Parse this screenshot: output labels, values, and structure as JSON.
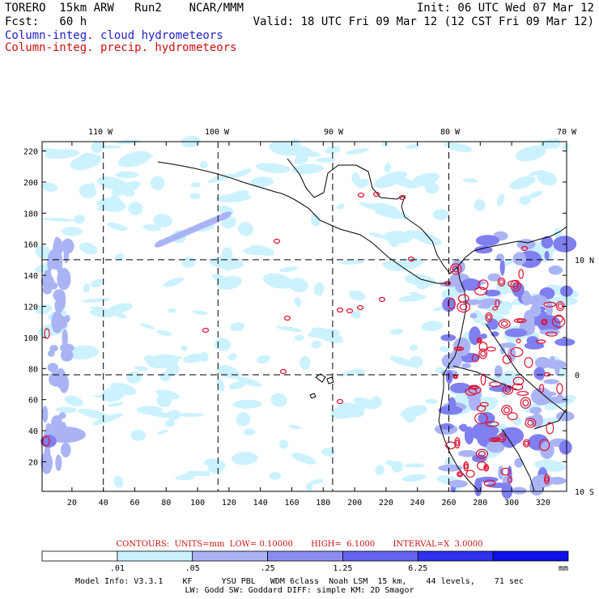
{
  "header": {
    "title_left": "TORERO  15km ARW   Run2    NCAR/MMM",
    "init": "Init: 06 UTC Wed 07 Mar 12",
    "fcst": "Fcst:   60 h",
    "valid": "Valid: 18 UTC Fri 09 Mar 12 (12 CST Fri 09 Mar 12)",
    "legend_cloud": "Column-integ. cloud hydrometeors",
    "legend_precip": "Column-integ. precip. hydrometeors"
  },
  "map": {
    "top_lon_labels": [
      "110 W",
      "100 W",
      "90 W",
      "80 W",
      "70 W"
    ],
    "right_lat_labels": [
      "10 N",
      "0",
      "10 S"
    ],
    "left_grid_labels": [
      "20",
      "40",
      "60",
      "80",
      "100",
      "120",
      "140",
      "160",
      "180",
      "200",
      "220"
    ],
    "bottom_grid_labels": [
      "20",
      "40",
      "60",
      "80",
      "100",
      "120",
      "140",
      "160",
      "180",
      "200",
      "220",
      "240",
      "260",
      "280",
      "300",
      "320"
    ],
    "grid_x_range": [
      1,
      335
    ],
    "grid_y_range": [
      1,
      226
    ],
    "meridian_grid_x": [
      40,
      113,
      186,
      260
    ],
    "parallel_grid_y": [
      76,
      150
    ],
    "colors": {
      "cloud_1": "#ccf2ff",
      "cloud_2": "#aab4f4",
      "cloud_3": "#7f7ff0",
      "precip_contour": "#dd1030",
      "coast": "#000000"
    }
  },
  "contours_text": "CONTOURS:  UNITS=mm  LOW= 0.10000       HIGH=  6.1000       INTERVAL=X  3.0000",
  "colorbar": {
    "labels": [
      ".01",
      ".05",
      ".25",
      "1.25",
      "6.25"
    ],
    "unit": "mm",
    "colors": [
      "#ffffff",
      "#ccf2ff",
      "#aab4f4",
      "#8c8cf0",
      "#6464ee",
      "#3030ee",
      "#1010e8"
    ]
  },
  "model_info": {
    "line1": "Model Info: V3.3.1    KF      YSU PBL   WDM 6class  Noah LSM  15 km,    44 levels,    71 sec",
    "line2": "LW: Godd SW: Goddard DIFF: simple KM: 2D Smagor"
  }
}
